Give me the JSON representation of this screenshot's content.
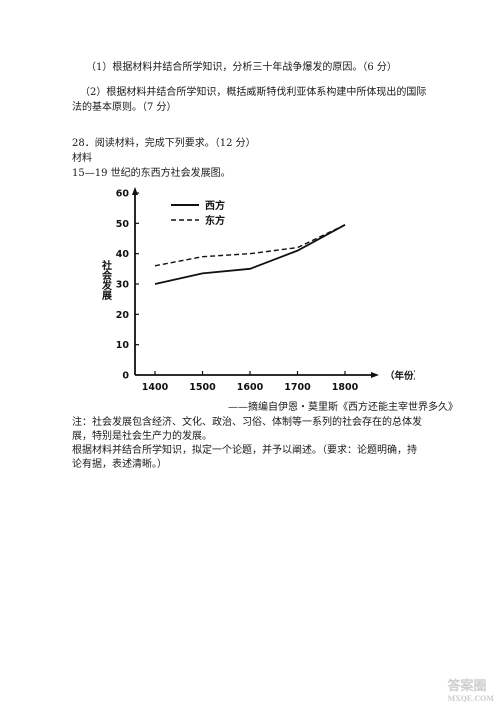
{
  "q27": {
    "part1": "（1）根据材料并结合所学知识，分析三十年战争爆发的原因。（6 分）",
    "part2_line1": "（2）根据材料并结合所学知识，概括威斯特伐利亚体系构建中所体现出的国际",
    "part2_line2": "法的基本原则。（7 分）"
  },
  "q28": {
    "heading": "28．阅读材料，完成下列要求。（12 分）",
    "material_label": "材料",
    "chart_caption": "15—19 世纪的东西方社会发展图。",
    "source": "——摘编自伊恩・莫里斯《西方还能主宰世界多久》",
    "note_line1": "注：社会发展包含经济、文化、政治、习俗、体制等一系列的社会存在的总体发",
    "note_line2": "展，特别是社会生产力的发展。",
    "task_line1": "根据材料并结合所学知识，拟定一个论题，并予以阐述。（要求：论题明确，持",
    "task_line2": "论有据，表述清晰。）"
  },
  "chart_data": {
    "type": "line",
    "x": [
      1400,
      1500,
      1600,
      1700,
      1800
    ],
    "xlabel": "（年份）",
    "ylabel": "社会发展",
    "ylim": [
      0,
      60
    ],
    "yticks": [
      0,
      10,
      20,
      30,
      40,
      50,
      60
    ],
    "series": [
      {
        "name": "西方",
        "style": "solid",
        "values": [
          30,
          33.5,
          35,
          41,
          49.5
        ]
      },
      {
        "name": "东方",
        "style": "dashed",
        "values": [
          36,
          39,
          40,
          42,
          49.5
        ]
      }
    ],
    "legend_position": "top-left",
    "grid": false
  },
  "watermark": {
    "main": "答案圈",
    "sub": "MXQE.COM"
  }
}
